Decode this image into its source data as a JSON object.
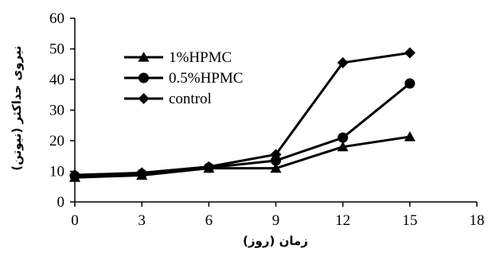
{
  "chart_data": {
    "type": "line",
    "xlabel": "زمان (روز)",
    "ylabel": "نیروی حداکثر (نیوتن)",
    "xlim": [
      0,
      18
    ],
    "ylim": [
      0,
      60
    ],
    "xticks": [
      0,
      3,
      6,
      9,
      12,
      15,
      18
    ],
    "yticks": [
      0,
      10,
      20,
      30,
      40,
      50,
      60
    ],
    "grid": false,
    "legend_position": "top-left",
    "x": [
      0,
      3,
      6,
      9,
      12,
      15
    ],
    "series": [
      {
        "name": "1%HPMC",
        "marker": "triangle",
        "values": [
          8,
          8.7,
          11,
          11,
          18,
          21.3
        ]
      },
      {
        "name": "0.5%HPMC",
        "marker": "circle",
        "values": [
          8.5,
          9.2,
          11.2,
          13.5,
          21,
          38.7
        ]
      },
      {
        "name": "control",
        "marker": "diamond",
        "values": [
          8.8,
          9.5,
          11.5,
          15.5,
          45.5,
          48.7
        ]
      }
    ],
    "line_color": "#000000"
  }
}
